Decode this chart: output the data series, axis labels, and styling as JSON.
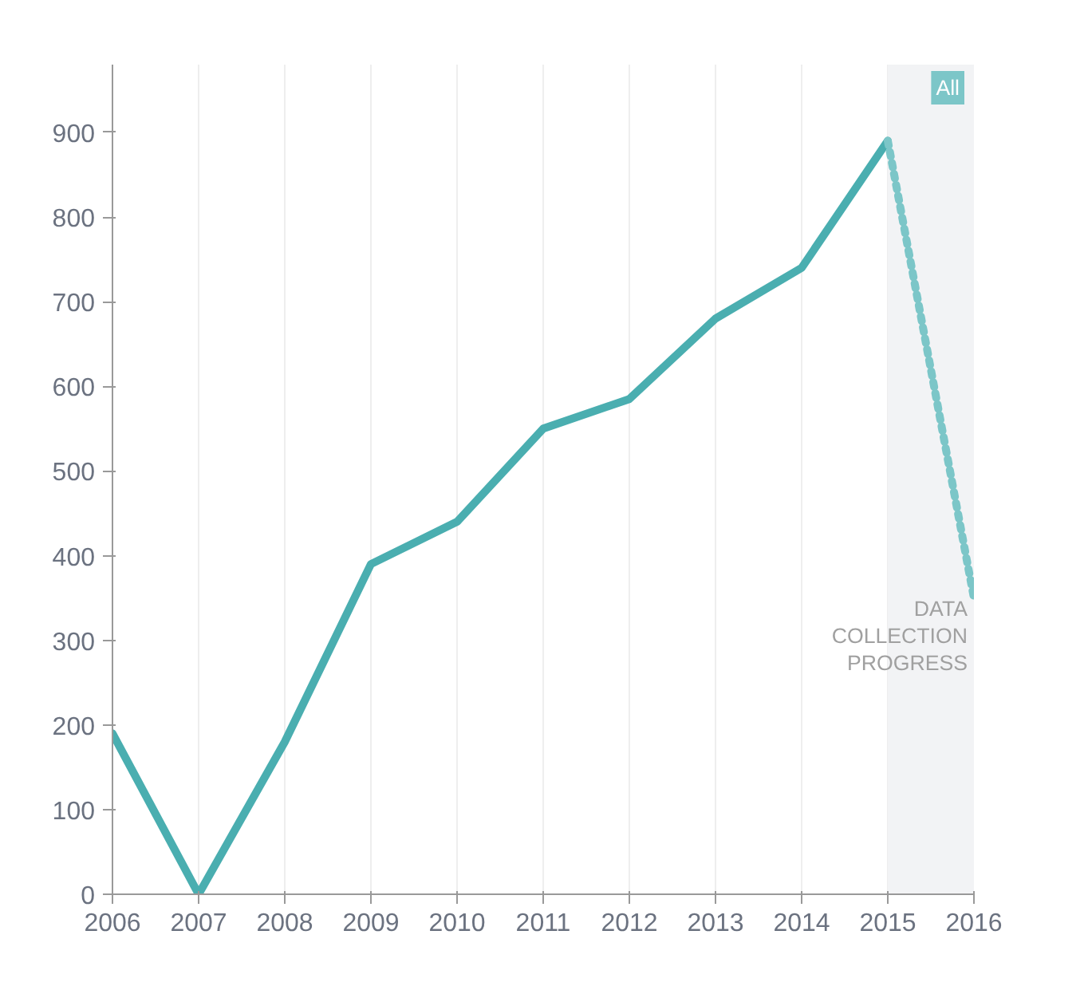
{
  "chart_data": {
    "type": "line",
    "x": [
      2006,
      2007,
      2008,
      2009,
      2010,
      2011,
      2012,
      2013,
      2014,
      2015,
      2016
    ],
    "series": [
      {
        "color": "#4aaeb0",
        "line_style": "solid",
        "values": [
          190,
          0,
          180,
          390,
          440,
          550,
          585,
          680,
          740,
          890,
          null
        ]
      },
      {
        "color": "#7cc6c8",
        "line_style": "dotted",
        "values": [
          null,
          null,
          null,
          null,
          null,
          null,
          null,
          null,
          null,
          890,
          350
        ]
      }
    ],
    "xlim": [
      2006,
      2016
    ],
    "xticks": [
      2006,
      2007,
      2008,
      2009,
      2010,
      2011,
      2012,
      2013,
      2014,
      2015,
      2016
    ],
    "ylim": [
      0,
      980
    ],
    "yticks": [
      0,
      100,
      200,
      300,
      400,
      500,
      600,
      700,
      800,
      900
    ],
    "grid": "x",
    "bands": [
      {
        "axis": "x",
        "from": 2015,
        "to": 2016,
        "color": "#f2f3f5"
      }
    ],
    "annotations": [
      "DATA\nCOLLECTION\nPROGRESS",
      "All"
    ]
  }
}
